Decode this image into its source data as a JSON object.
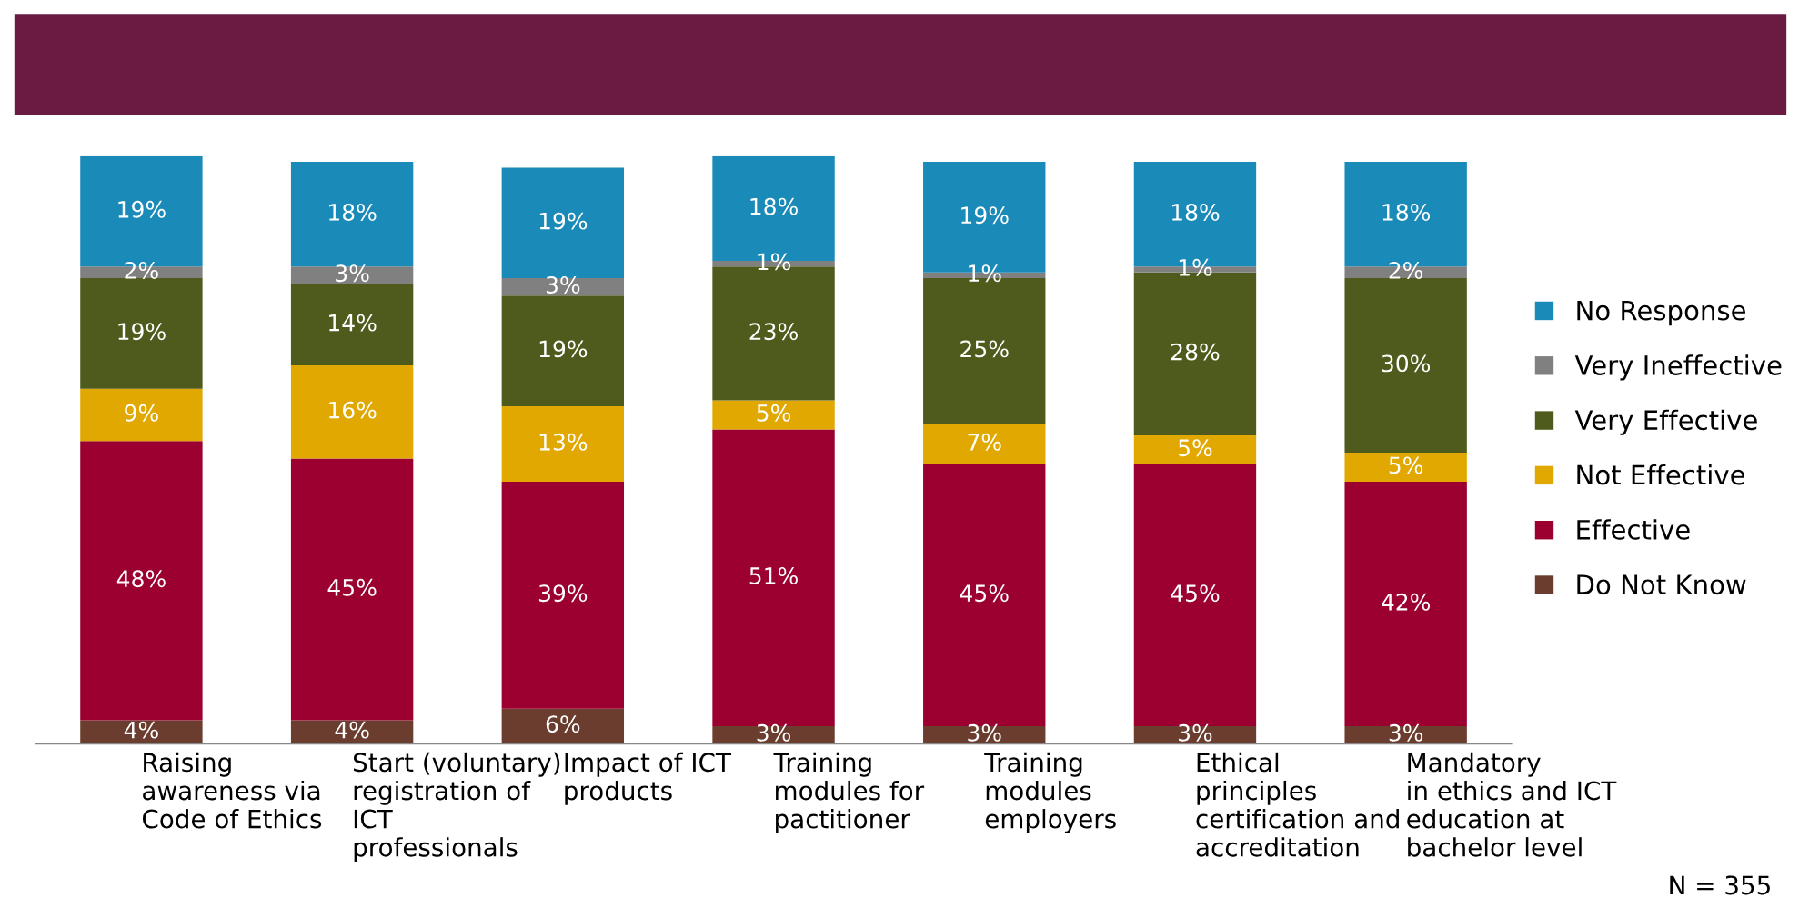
{
  "chart_data": {
    "type": "bar",
    "stacked": true,
    "legend": "right",
    "grid": false,
    "categories": [
      "Raising\nawareness via\nCode of Ethics",
      "Start (voluntary)\nregistration of\nICT\nprofessionals",
      "Impact of ICT\nproducts",
      "Training\nmodules for\npactitioner",
      "Training\nmodules\nemployers",
      "Ethical\nprinciples\ncertification and\naccreditation",
      "Mandatory\nin ethics and ICT\neducation at\nbachelor level"
    ],
    "series": [
      {
        "name": "Do Not Know",
        "color": "#6b3d2e",
        "values": [
          4,
          4,
          6,
          3,
          3,
          3,
          3
        ],
        "value_labels": [
          "4%",
          "4%",
          "6%",
          "3%",
          "3%",
          "3%",
          "3%"
        ]
      },
      {
        "name": "Effective",
        "color": "#9b0030",
        "values": [
          48,
          45,
          39,
          51,
          45,
          45,
          42
        ],
        "value_labels": [
          "48%",
          "45%",
          "39%",
          "51%",
          "45%",
          "45%",
          "42%"
        ]
      },
      {
        "name": "Not Effective",
        "color": "#e0a800",
        "values": [
          9,
          16,
          13,
          5,
          7,
          5,
          5
        ],
        "value_labels": [
          "9%",
          "16%",
          "13%",
          "5%",
          "7%",
          "5%",
          "5%"
        ]
      },
      {
        "name": "Very Effective",
        "color": "#4f5b1c",
        "values": [
          19,
          14,
          19,
          23,
          25,
          28,
          30
        ],
        "value_labels": [
          "19%",
          "14%",
          "19%",
          "23%",
          "25%",
          "28%",
          "30%"
        ]
      },
      {
        "name": "Very Ineffective",
        "color": "#808080",
        "values": [
          2,
          3,
          3,
          1,
          1,
          1,
          2
        ],
        "value_labels": [
          "2%",
          "3%",
          "3%",
          "1%",
          "1%",
          "1%",
          "2%"
        ]
      },
      {
        "name": "No Response",
        "color": "#1a8ab8",
        "values": [
          19,
          18,
          19,
          18,
          19,
          18,
          18
        ],
        "value_labels": [
          "19%",
          "18%",
          "19%",
          "18%",
          "19%",
          "18%",
          "18%"
        ]
      }
    ],
    "annotations": [
      "N = 355"
    ]
  }
}
